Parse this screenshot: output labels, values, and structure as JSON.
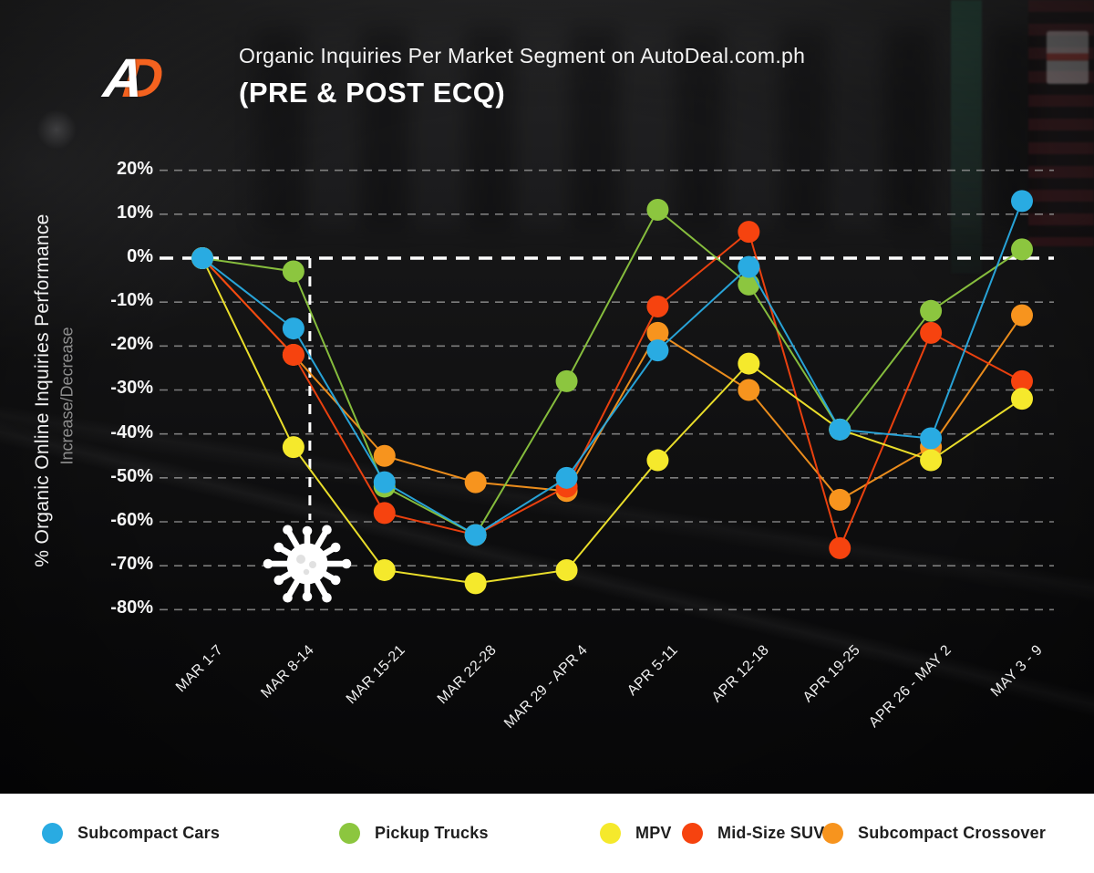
{
  "header": {
    "logo_a": "A",
    "logo_d": "D",
    "logo_color": "#f4621f",
    "title": "Organic Inquiries Per Market Segment on AutoDeal.com.ph",
    "subtitle": "(PRE & POST ECQ)"
  },
  "y_axis": {
    "title": "% Organic Online Inquiries Performance",
    "subtitle": "Increase/Decrease",
    "tick_labels": [
      "20%",
      "10%",
      "0%",
      "-10%",
      "-20%",
      "-30%",
      "-40%",
      "-50%",
      "-60%",
      "-70%",
      "-80%"
    ]
  },
  "chart_data": {
    "type": "line",
    "title": "Organic Inquiries Per Market Segment on AutoDeal.com.ph (PRE & POST ECQ)",
    "ylabel": "% Organic Online Inquiries Performance Increase/Decrease",
    "yaxis_format": "percent",
    "ylim": [
      -80,
      20
    ],
    "ytick_step": 10,
    "grid": "horizontal-dashed",
    "zero_line": "bold-white-dashed",
    "legend_position": "bottom",
    "categories": [
      "MAR 1-7",
      "MAR 8-14",
      "MAR 15-21",
      "MAR 22-28",
      "MAR 29 - APR 4",
      "APR 5-11",
      "APR 12-18",
      "APR 19-25",
      "APR 26 - MAY 2",
      "MAY 3 - 9"
    ],
    "series": [
      {
        "name": "Subcompact Cars",
        "color": "#29abe2",
        "values": [
          0,
          -16,
          -51,
          -63,
          -50,
          -21,
          -2,
          -39,
          -41,
          13
        ]
      },
      {
        "name": "Pickup Trucks",
        "color": "#8cc63f",
        "values": [
          0,
          -3,
          -52,
          -63,
          -28,
          11,
          -6,
          -39,
          -12,
          2
        ]
      },
      {
        "name": "MPV",
        "color": "#f5e92c",
        "values": [
          0,
          -43,
          -71,
          -74,
          -71,
          -46,
          -24,
          -39,
          -46,
          -32
        ]
      },
      {
        "name": "Mid-Size SUV",
        "color": "#f6430f",
        "values": [
          0,
          -22,
          -58,
          -63,
          -52,
          -11,
          6,
          -66,
          -17,
          -28
        ]
      },
      {
        "name": "Subcompact Crossover",
        "color": "#f7941e",
        "values": [
          0,
          -22,
          -45,
          -51,
          -53,
          -17,
          -30,
          -55,
          -43,
          -13
        ]
      }
    ],
    "annotations": {
      "ecq_start_line": {
        "category": "MAR 8-14",
        "from_pct": 0,
        "to_pct": -60,
        "style": "vertical-white-dashed",
        "icon": "coronavirus"
      }
    }
  }
}
